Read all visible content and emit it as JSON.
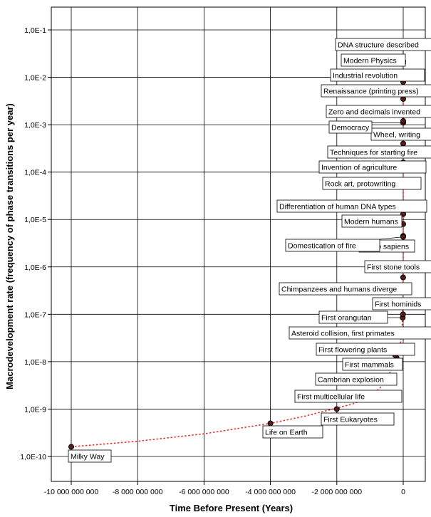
{
  "chart_data": {
    "type": "scatter",
    "title": "",
    "xlabel": "Time Before Present (Years)",
    "ylabel": "Macrodevelopment rate (frequency of phase transitions per year)",
    "x_scale": "linear",
    "y_scale": "log",
    "xlim": [
      -10200000000,
      350000000
    ],
    "ylim": [
      5e-11,
      0.5
    ],
    "grid": true,
    "x_ticks": [
      -10000000000,
      -8000000000,
      -6000000000,
      -4000000000,
      -2000000000,
      0
    ],
    "x_tick_labels": [
      "-10 000 000 000",
      "-8 000 000 000",
      "-6 000 000 000",
      "-4 000 000 000",
      "-2 000 000 000",
      "0"
    ],
    "y_ticks": [
      1e-10,
      1e-09,
      1e-08,
      1e-07,
      1e-06,
      1e-05,
      0.0001,
      0.001,
      0.01,
      0.1
    ],
    "y_tick_labels": [
      "1,0E-10",
      "1,0E-9",
      "1,0E-8",
      "1,0E-7",
      "1,0E-6",
      "1,0E-5",
      "1,0E-4",
      "1,0E-3",
      "1,0E-2",
      "1,0E-1"
    ],
    "colors": {
      "point": "#000000",
      "point_fill": "#5a1a1a",
      "trend": "#e8312a",
      "grid": "#000000"
    },
    "points": [
      {
        "label": "Milky Way",
        "x": -10000000000,
        "y": 1.6e-10
      },
      {
        "label": "Life on Earth",
        "x": -4000000000,
        "y": 5e-10
      },
      {
        "label": "First Eukaryotes",
        "x": -2000000000,
        "y": 1e-09
      },
      {
        "label": "First multicellular life",
        "x": -1000000000,
        "y": 1.7e-09
      },
      {
        "label": "Cambrian explosion",
        "x": -500000000,
        "y": 4.5e-09
      },
      {
        "label": "First mammals",
        "x": -200000000,
        "y": 1.2e-08
      },
      {
        "label": "First flowering plants",
        "x": -250000000,
        "y": 1.4e-08
      },
      {
        "label": "Asteroid collision, first primates",
        "x": -65000000,
        "y": 3.8e-08
      },
      {
        "label": "First orangutan",
        "x": -15000000,
        "y": 8.5e-08
      },
      {
        "label": "First hominids",
        "x": -6000000,
        "y": 1e-07
      },
      {
        "label": "Chimpanzees and humans diverge",
        "x": -5000000,
        "y": 3.4e-07
      },
      {
        "label": "First stone tools",
        "x": -2500000,
        "y": 6e-07
      },
      {
        "label": "Homo sapiens",
        "x": -200000,
        "y": 4.5e-06
      },
      {
        "label": "Domestication of fire",
        "x": -400000,
        "y": 4.3e-06
      },
      {
        "label": "Modern humans",
        "x": -100000,
        "y": 8e-06
      },
      {
        "label": "Differentiation of human DNA types",
        "x": -60000,
        "y": 1.3e-05
      },
      {
        "label": "Rock art, protowriting",
        "x": -35000,
        "y": 5.5e-05
      },
      {
        "label": "Invention of agriculture",
        "x": -10000,
        "y": 0.00012
      },
      {
        "label": "Techniques for starting fire",
        "x": -12000,
        "y": 0.00016
      },
      {
        "label": "Wheel, writing",
        "x": -5000,
        "y": 0.0004
      },
      {
        "label": "Democracy",
        "x": -2500,
        "y": 0.0011
      },
      {
        "label": "Zero and decimals invented",
        "x": -1500,
        "y": 0.0012
      },
      {
        "label": "Renaissance (printing press)",
        "x": -550,
        "y": 0.0035
      },
      {
        "label": "Industrial revolution",
        "x": -250,
        "y": 0.008
      },
      {
        "label": "Modern Physics",
        "x": -100,
        "y": 0.02
      },
      {
        "label": "DNA structure described",
        "x": -60,
        "y": 0.022
      }
    ],
    "trendline": {
      "style": "dotted",
      "x": [
        -10000000000,
        -8000000000,
        -6000000000,
        -4000000000,
        -3000000000,
        -2000000000,
        -1500000000,
        -1000000000,
        -700000000,
        -500000000,
        -350000000,
        -250000000,
        -150000000,
        -80000000,
        -40000000,
        -10000000,
        -1000000,
        0
      ],
      "y": [
        1.6e-10,
        2.1e-10,
        3e-10,
        5e-10,
        7e-10,
        1.05e-09,
        1.3e-09,
        1.8e-09,
        2.8e-09,
        4.3e-09,
        7e-09,
        1.1e-08,
        1.6e-08,
        2.6e-08,
        4.5e-08,
        1e-07,
        1e-06,
        0.03
      ]
    }
  }
}
